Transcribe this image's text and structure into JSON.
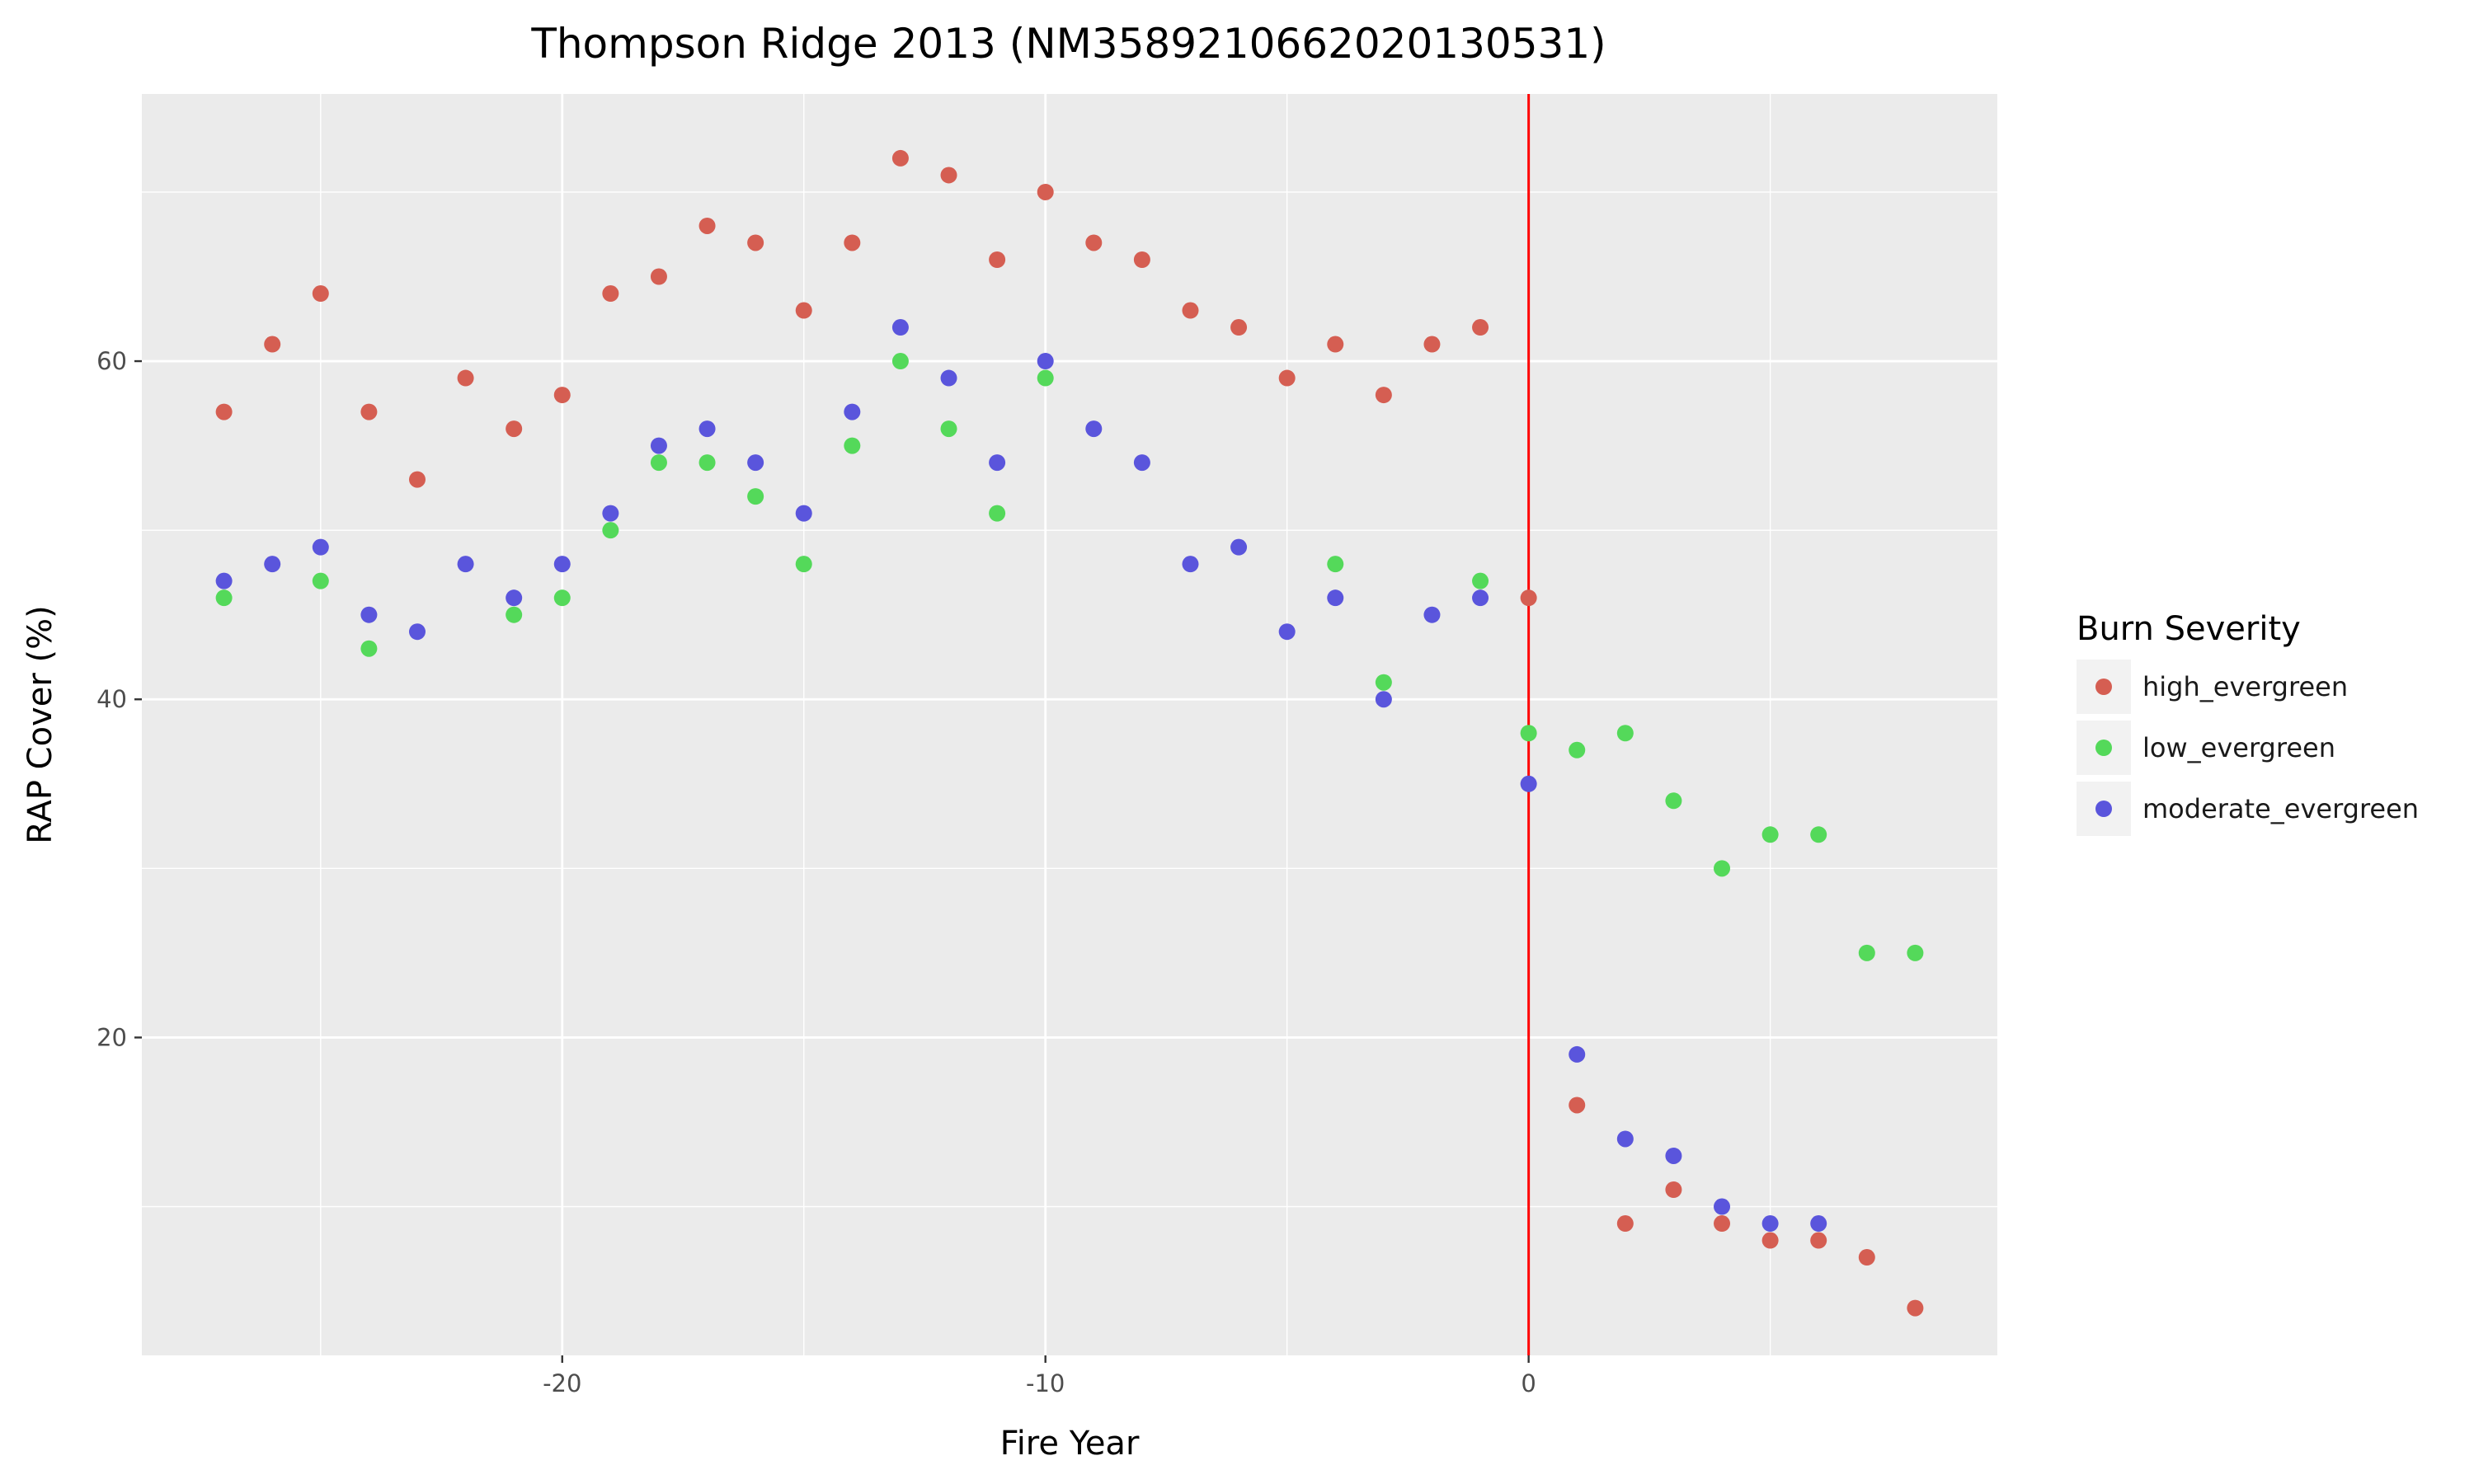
{
  "chart_data": {
    "type": "scatter",
    "title": "Thompson Ridge 2013 (NM3589210662020130531)",
    "xlabel": "Fire Year",
    "ylabel": "RAP Cover (%)",
    "xlim": [
      -28.7,
      9.7
    ],
    "ylim": [
      1.2,
      75.8
    ],
    "x_ticks": [
      -20,
      -10,
      0
    ],
    "y_ticks": [
      20,
      40,
      60
    ],
    "grid": true,
    "vline": {
      "x": 0,
      "color": "#ff0000"
    },
    "legend": {
      "title": "Burn Severity",
      "position": "right"
    },
    "series": [
      {
        "name": "high_evergreen",
        "color": "#d55e52",
        "points": [
          [
            -27,
            57
          ],
          [
            -26,
            61
          ],
          [
            -25,
            64
          ],
          [
            -24,
            57
          ],
          [
            -23,
            53
          ],
          [
            -22,
            59
          ],
          [
            -21,
            56
          ],
          [
            -20,
            58
          ],
          [
            -19,
            64
          ],
          [
            -18,
            65
          ],
          [
            -17,
            68
          ],
          [
            -16,
            67
          ],
          [
            -15,
            63
          ],
          [
            -14,
            67
          ],
          [
            -13,
            72
          ],
          [
            -12,
            71
          ],
          [
            -11,
            66
          ],
          [
            -10,
            70
          ],
          [
            -9,
            67
          ],
          [
            -8,
            66
          ],
          [
            -7,
            63
          ],
          [
            -6,
            62
          ],
          [
            -5,
            59
          ],
          [
            -4,
            61
          ],
          [
            -3,
            58
          ],
          [
            -2,
            61
          ],
          [
            -1,
            62
          ],
          [
            0,
            46
          ],
          [
            1,
            16
          ],
          [
            2,
            9
          ],
          [
            3,
            11
          ],
          [
            4,
            9
          ],
          [
            5,
            8
          ],
          [
            6,
            8
          ],
          [
            7,
            7
          ],
          [
            8,
            4
          ]
        ]
      },
      {
        "name": "low_evergreen",
        "color": "#54d95a",
        "points": [
          [
            -27,
            46
          ],
          [
            -25,
            47
          ],
          [
            -24,
            43
          ],
          [
            -21,
            45
          ],
          [
            -20,
            46
          ],
          [
            -19,
            50
          ],
          [
            -18,
            54
          ],
          [
            -17,
            54
          ],
          [
            -16,
            52
          ],
          [
            -15,
            48
          ],
          [
            -14,
            55
          ],
          [
            -13,
            60
          ],
          [
            -12,
            56
          ],
          [
            -11,
            51
          ],
          [
            -10,
            59
          ],
          [
            -4,
            48
          ],
          [
            -3,
            41
          ],
          [
            -1,
            47
          ],
          [
            0,
            38
          ],
          [
            1,
            37
          ],
          [
            2,
            38
          ],
          [
            3,
            34
          ],
          [
            4,
            30
          ],
          [
            5,
            32
          ],
          [
            6,
            32
          ],
          [
            7,
            25
          ],
          [
            8,
            25
          ]
        ]
      },
      {
        "name": "moderate_evergreen",
        "color": "#5a55dc",
        "points": [
          [
            -27,
            47
          ],
          [
            -26,
            48
          ],
          [
            -25,
            49
          ],
          [
            -24,
            45
          ],
          [
            -23,
            44
          ],
          [
            -22,
            48
          ],
          [
            -21,
            46
          ],
          [
            -20,
            48
          ],
          [
            -19,
            51
          ],
          [
            -18,
            55
          ],
          [
            -17,
            56
          ],
          [
            -16,
            54
          ],
          [
            -15,
            51
          ],
          [
            -14,
            57
          ],
          [
            -13,
            62
          ],
          [
            -12,
            59
          ],
          [
            -11,
            54
          ],
          [
            -10,
            60
          ],
          [
            -9,
            56
          ],
          [
            -8,
            54
          ],
          [
            -7,
            48
          ],
          [
            -6,
            49
          ],
          [
            -5,
            44
          ],
          [
            -4,
            46
          ],
          [
            -3,
            40
          ],
          [
            -2,
            45
          ],
          [
            -1,
            46
          ],
          [
            0,
            35
          ],
          [
            1,
            19
          ],
          [
            2,
            14
          ],
          [
            3,
            13
          ],
          [
            4,
            10
          ],
          [
            5,
            9
          ],
          [
            6,
            9
          ]
        ]
      }
    ]
  }
}
